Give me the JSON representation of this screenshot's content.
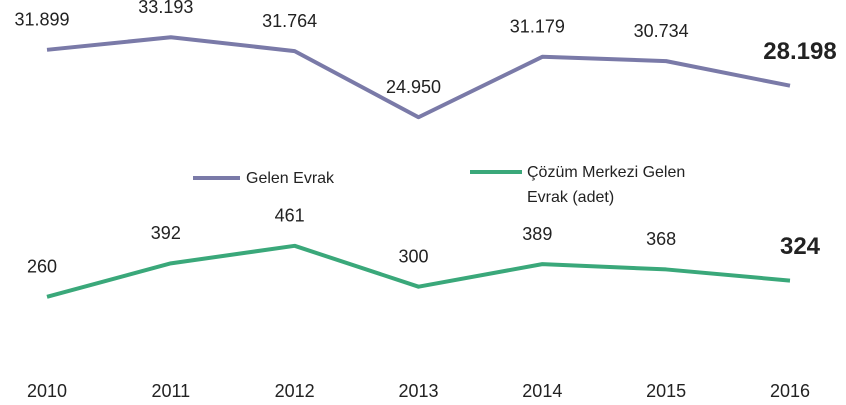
{
  "chart_data": {
    "type": "line",
    "categories": [
      "2010",
      "2011",
      "2012",
      "2013",
      "2014",
      "2015",
      "2016"
    ],
    "series": [
      {
        "name": "Gelen Evrak",
        "color": "#7a7aa8",
        "axis": "y",
        "values": [
          31899,
          33193,
          31764,
          24950,
          31179,
          30734,
          28198
        ],
        "value_labels": [
          "31.899",
          "33.193",
          "31.764",
          "24.950",
          "31.179",
          "30.734",
          "28.198"
        ]
      },
      {
        "name": "Çözüm Merkezi Gelen Evrak (adet)",
        "color": "#3aa87a",
        "axis": "y2",
        "values": [
          260,
          392,
          461,
          300,
          389,
          368,
          324
        ]
      }
    ],
    "ylim": [
      2000,
      36000
    ],
    "y2lim": [
      90,
      1390
    ],
    "grid": false
  }
}
